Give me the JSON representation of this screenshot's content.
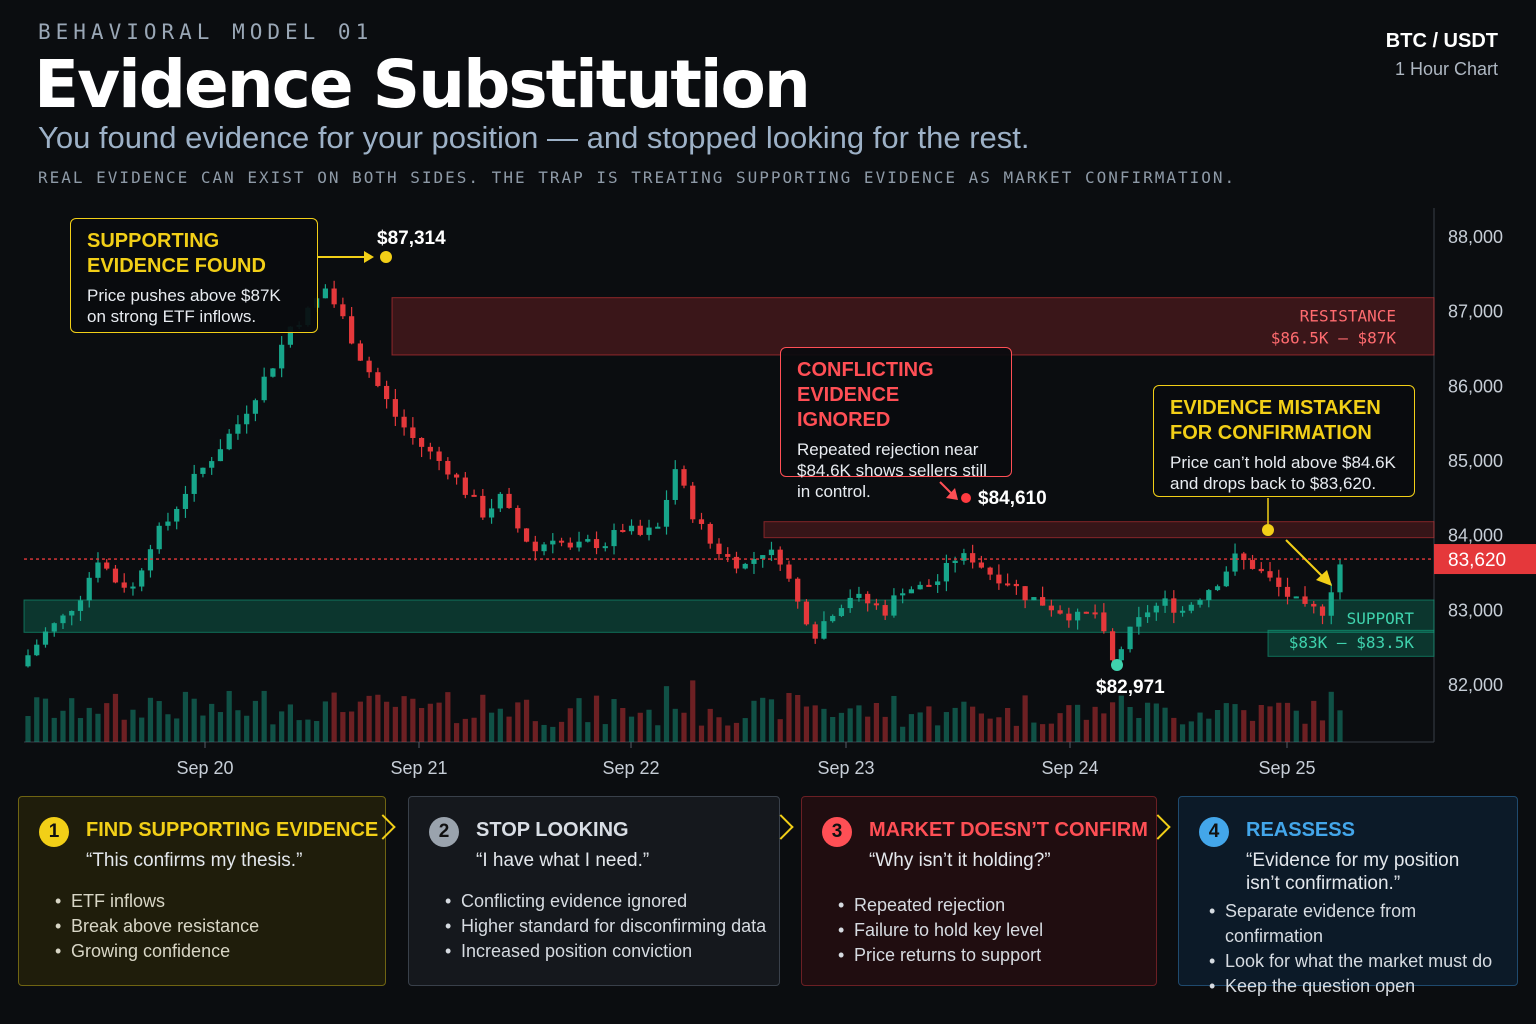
{
  "header": {
    "kicker": "BEHAVIORAL MODEL 01",
    "title": "Evidence Substitution",
    "subtitle": "You found evidence for your position — and stopped looking for the rest.",
    "note": "REAL EVIDENCE CAN EXIST ON BOTH SIDES. THE TRAP IS TREATING SUPPORTING EVIDENCE AS MARKET CONFIRMATION."
  },
  "pair": {
    "symbol": "BTC / USDT",
    "timeframe": "1 Hour Chart"
  },
  "colors": {
    "up": "#17a58a",
    "down": "#e5383b",
    "resistance": "#e5383b",
    "support": "#13a07f",
    "yellow": "#f2cf17",
    "grey": "#9aa3ad",
    "red": "#ff4f55",
    "blue": "#43a6ea"
  },
  "chart_data": {
    "type": "candlestick",
    "x_ticks": [
      "Sep 20",
      "Sep 21",
      "Sep 22",
      "Sep 23",
      "Sep 24",
      "Sep 25"
    ],
    "y_ticks": [
      "88,000",
      "87,000",
      "86,000",
      "85,000",
      "84,000",
      "83,000",
      "82,000"
    ],
    "ylim": [
      82000,
      88000
    ],
    "current_price": 83620,
    "current_price_label": "83,620",
    "close_path": [
      82400,
      82700,
      82900,
      83200,
      83700,
      83400,
      83300,
      83900,
      84200,
      84600,
      84900,
      85200,
      85500,
      85900,
      86300,
      86800,
      87000,
      87314,
      86900,
      86400,
      86000,
      85600,
      85300,
      85100,
      84900,
      84600,
      84300,
      84500,
      84100,
      83800,
      84000,
      83800,
      83900,
      83900,
      84100,
      84000,
      84100,
      84900,
      84300,
      83900,
      83700,
      83600,
      83800,
      83700,
      83100,
      82700,
      83000,
      83200,
      83100,
      83000,
      83300,
      83300,
      83400,
      83700,
      83700,
      83500,
      83400,
      83200,
      83100,
      83000,
      82900,
      82971,
      82300,
      82700,
      83000,
      83100,
      83000,
      83200,
      83400,
      83700,
      83600,
      83400,
      83200,
      83000,
      83000,
      83620
    ],
    "annotations": [
      {
        "label": "$87,314",
        "price": 87314
      },
      {
        "label": "$84,610",
        "price": 84610
      },
      {
        "label": "$82,971",
        "price": 82971
      }
    ],
    "zones": [
      {
        "name": "RESISTANCE",
        "range": "$86.5K – $87K",
        "low": 86500,
        "high": 87000
      },
      {
        "name": "SUPPORT",
        "range": "$83K – $83.5K",
        "low": 83000,
        "high": 83500
      }
    ]
  },
  "callouts": [
    {
      "title": "SUPPORTING EVIDENCE FOUND",
      "body": "Price pushes above $87K on strong ETF inflows."
    },
    {
      "title": "CONFLICTING EVIDENCE IGNORED",
      "body": "Repeated rejection near $84.6K shows sellers still in control."
    },
    {
      "title": "EVIDENCE MISTAKEN FOR CONFIRMATION",
      "body": "Price can’t hold above $84.6K and drops back to $83,620."
    }
  ],
  "steps": [
    {
      "num": "1",
      "title": "FIND SUPPORTING EVIDENCE",
      "quote": "“This confirms my thesis.”",
      "bullets": [
        "ETF inflows",
        "Break above resistance",
        "Growing confidence"
      ]
    },
    {
      "num": "2",
      "title": "STOP LOOKING",
      "quote": "“I have what I need.”",
      "bullets": [
        "Conflicting evidence ignored",
        "Higher standard for disconfirming data",
        "Increased position conviction"
      ]
    },
    {
      "num": "3",
      "title": "MARKET DOESN’T CONFIRM",
      "quote": "“Why isn’t it holding?”",
      "bullets": [
        "Repeated rejection",
        "Failure to hold key level",
        "Price returns to support"
      ]
    },
    {
      "num": "4",
      "title": "REASSESS",
      "quote": "“Evidence for my position isn’t confirmation.”",
      "bullets": [
        "Separate evidence from confirmation",
        "Look for what the market must do",
        "Keep the question open"
      ]
    }
  ]
}
